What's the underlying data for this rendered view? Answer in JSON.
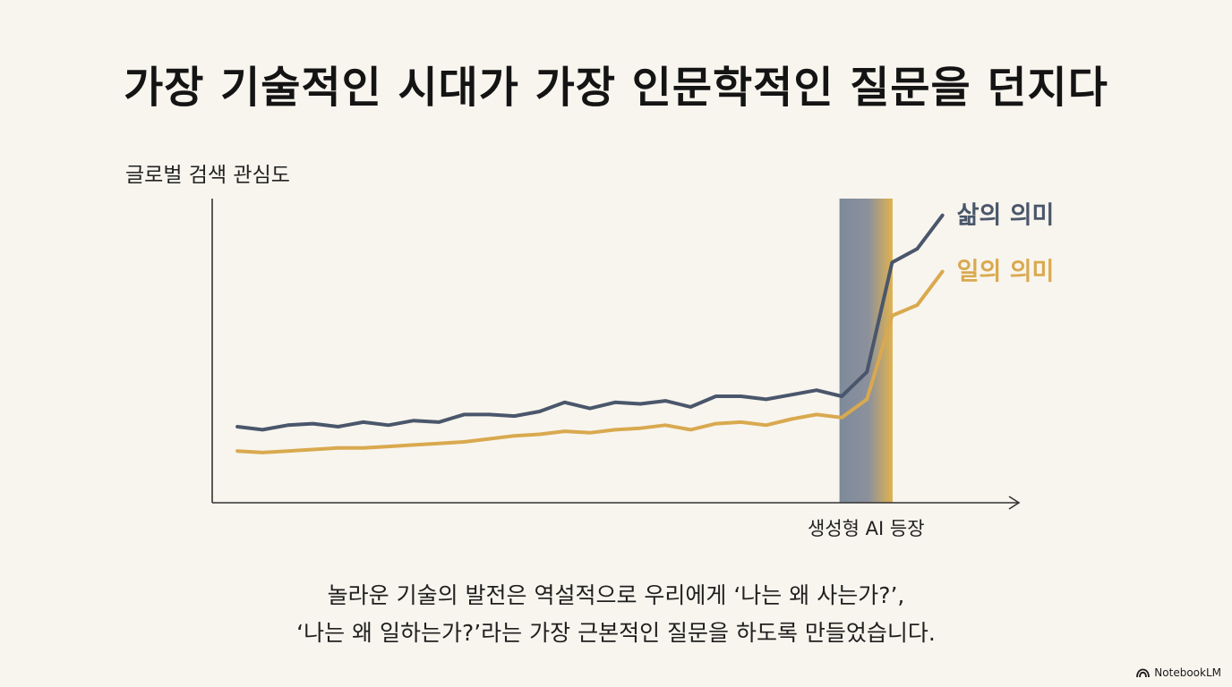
{
  "title": "가장 기술적인 시대가 가장 인문학적인 질문을 던지다",
  "chart_data": {
    "type": "line",
    "title": "가장 기술적인 시대가 가장 인문학적인 질문을 던지다",
    "ylabel": "글로벌 검색 관심도",
    "xlabel": "",
    "x": [
      1,
      2,
      3,
      4,
      5,
      6,
      7,
      8,
      9,
      10,
      11,
      12,
      13,
      14,
      15,
      16,
      17,
      18,
      19,
      20,
      21,
      22,
      23,
      24,
      25,
      26,
      27,
      28,
      29
    ],
    "ylim": [
      0,
      100
    ],
    "xlim": [
      0,
      32
    ],
    "grid": false,
    "legend": "right",
    "series": [
      {
        "name": "삶의 의미",
        "color": "#4a566b",
        "values": [
          25,
          24,
          25.5,
          26,
          25,
          26.5,
          25.5,
          27,
          26.5,
          29,
          29,
          28.5,
          30,
          33,
          31,
          33,
          32.5,
          33.5,
          31.5,
          35,
          35,
          34,
          35.5,
          37,
          35,
          43,
          79,
          83.5,
          94.5
        ]
      },
      {
        "name": "일의 의미",
        "color": "#d9a94f",
        "values": [
          17,
          16.5,
          17,
          17.5,
          18,
          18,
          18.5,
          19,
          19.5,
          20,
          21,
          22,
          22.5,
          23.5,
          23,
          24,
          24.5,
          25.5,
          24,
          26,
          26.5,
          25.5,
          27.5,
          29,
          28,
          34,
          61.5,
          65,
          76
        ]
      }
    ],
    "annotations": [
      {
        "label": "생성형 AI 등장",
        "x_start": 25,
        "x_end": 27
      }
    ]
  },
  "caption": {
    "line1": "놀라운 기술의 발전은 역설적으로 우리에게 ‘나는 왜 사는가?’,",
    "line2": "‘나는 왜 일하는가?’라는 가장 근본적인 질문을 하도록 만들었습니다."
  },
  "brand": {
    "label": "NotebookLM",
    "icon": "notebooklm-icon"
  }
}
